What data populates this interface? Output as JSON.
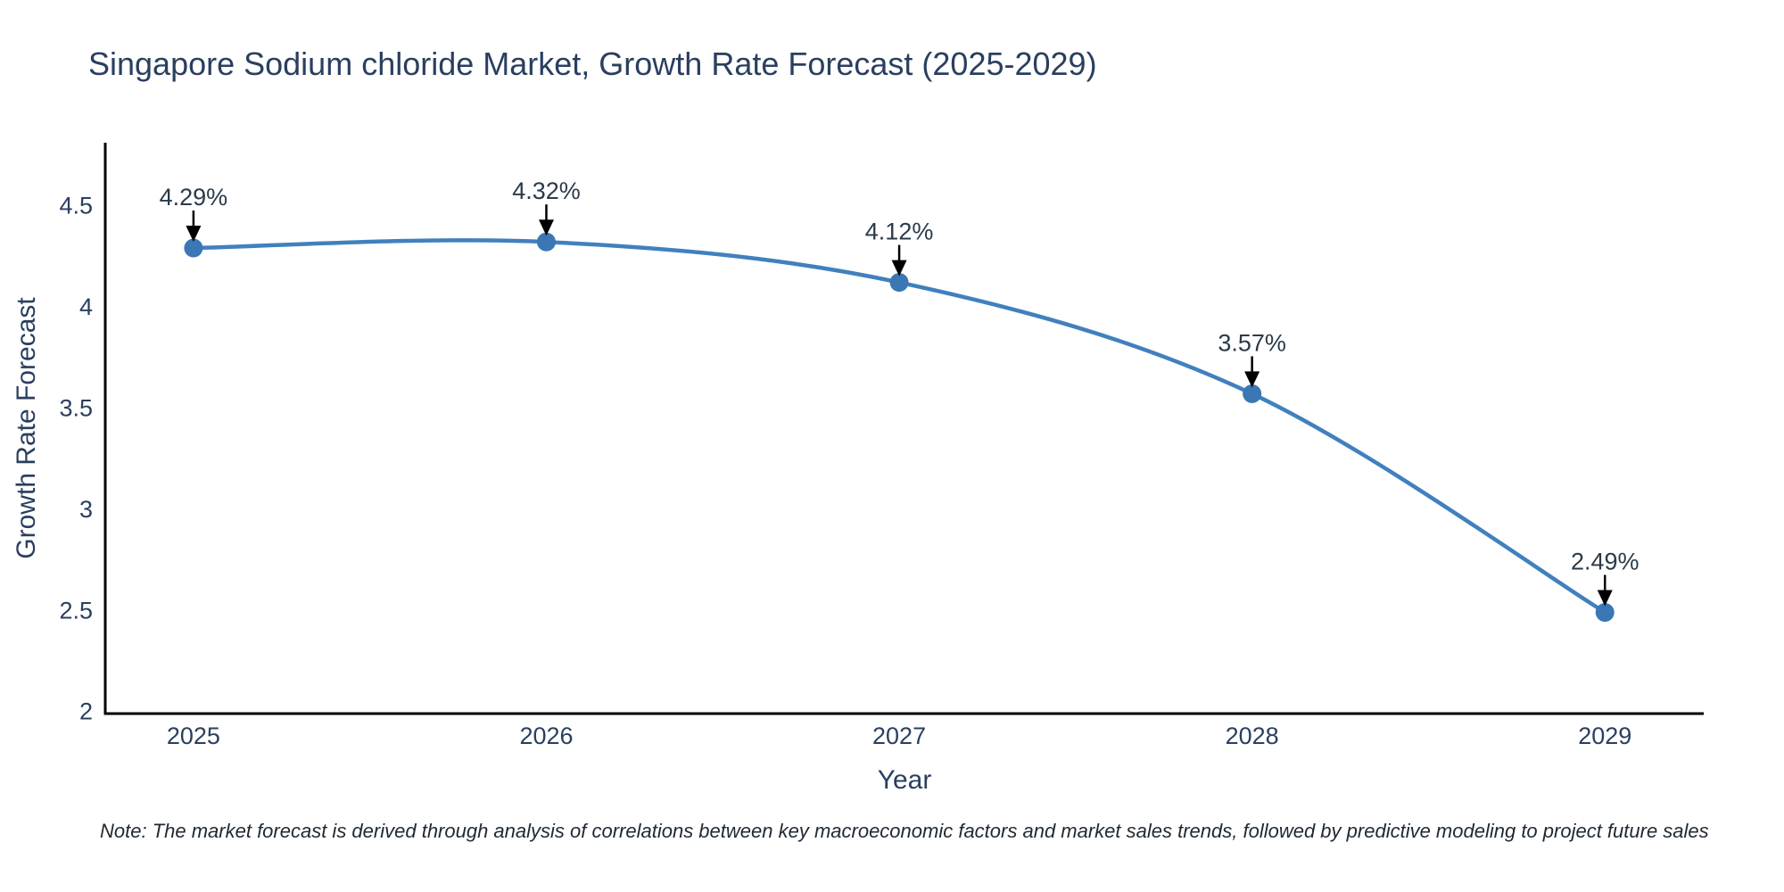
{
  "note": "Note: The market forecast is derived through analysis of correlations between key macroeconomic factors and market sales trends, followed by predictive modeling to project future sales",
  "chart_data": {
    "type": "line",
    "title": "Singapore Sodium chloride Market, Growth Rate Forecast (2025-2029)",
    "xlabel": "Year",
    "ylabel": "Growth Rate Forecast",
    "x": [
      2025,
      2026,
      2027,
      2028,
      2029
    ],
    "y": [
      4.29,
      4.32,
      4.12,
      3.57,
      2.49
    ],
    "point_labels": [
      "4.29%",
      "4.32%",
      "4.12%",
      "3.57%",
      "2.49%"
    ],
    "xticks": [
      2025,
      2026,
      2027,
      2028,
      2029
    ],
    "xtick_labels": [
      "2025",
      "2026",
      "2027",
      "2028",
      "2029"
    ],
    "yticks": [
      2,
      2.5,
      3,
      3.5,
      4,
      4.5
    ],
    "ytick_labels": [
      "2",
      "2.5",
      "3",
      "3.5",
      "4",
      "4.5"
    ],
    "xlim": [
      2024.75,
      2029.28
    ],
    "ylim": [
      1.99,
      4.81
    ],
    "line_shape": "spline",
    "grid": false,
    "legend": "none",
    "colors": {
      "line": "#4180be",
      "marker": "#3a77b4",
      "axis": "#000000",
      "tick_text": "#2a3f5f",
      "annotation_text": "#2b3a4a"
    }
  }
}
